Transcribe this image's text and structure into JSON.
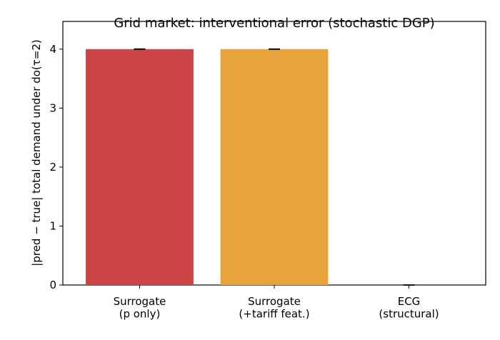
{
  "chart_data": {
    "type": "bar",
    "title": "Grid market: interventional error (stochastic DGP)",
    "y_label": "|pred − true| total demand under do(τ=2)",
    "categories": [
      "Surrogate\n(p only)",
      "Surrogate\n(+tariff feat.)",
      "ECG\n(structural)"
    ],
    "values": [
      4.0,
      4.0,
      0.0
    ],
    "errors": [
      0.003,
      0.003,
      0.0
    ],
    "colors": [
      "#cb4546",
      "#e8a43c",
      "#4a9a5c"
    ],
    "ylim": [
      0,
      4.47
    ],
    "yticks": [
      0,
      1,
      2,
      3,
      4
    ],
    "grid": false
  }
}
